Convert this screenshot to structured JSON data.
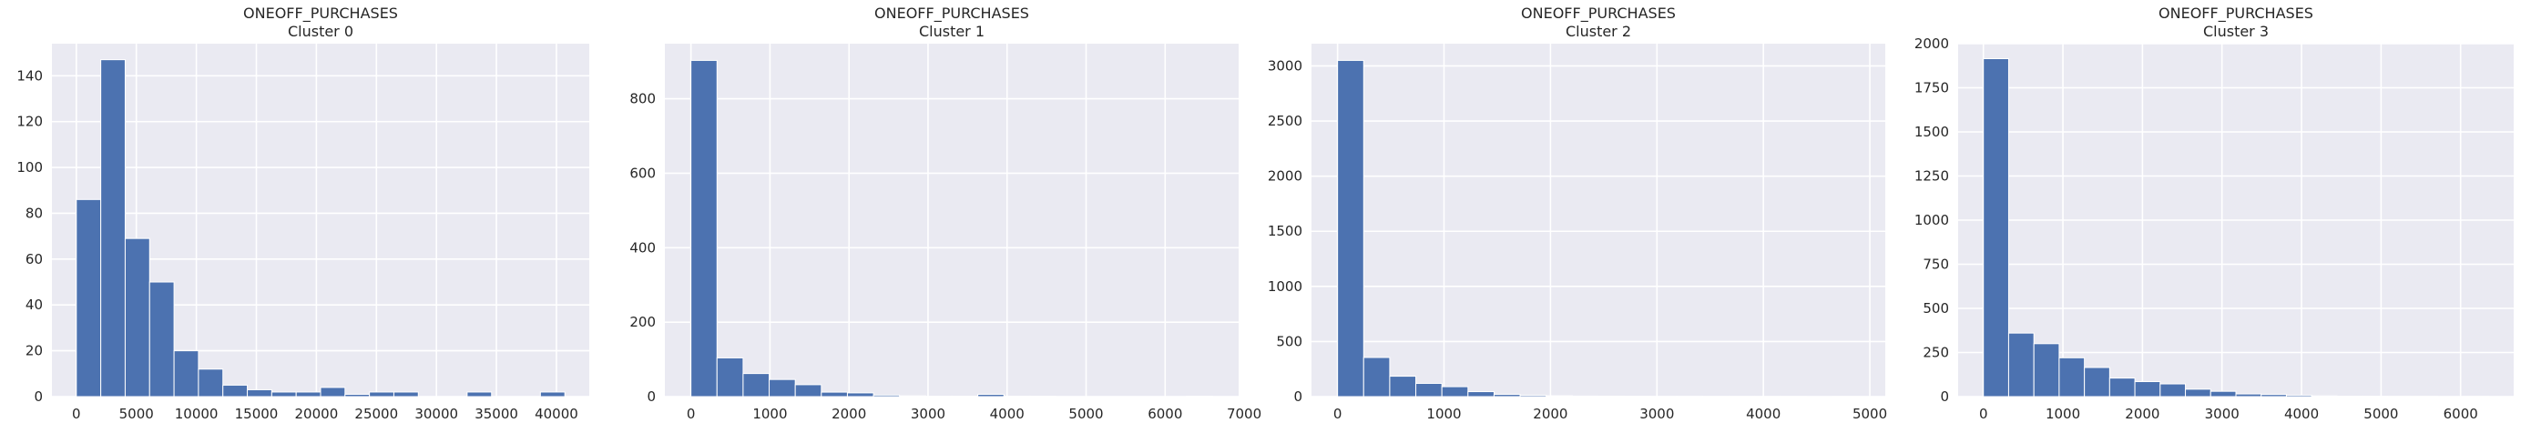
{
  "chart_data": [
    {
      "type": "bar",
      "title": "ONEOFF_PURCHASES",
      "subtitle": "Cluster 0",
      "bin_edges": [
        0,
        2035,
        4070,
        6105,
        8140,
        10175,
        12210,
        14245,
        16280,
        18315,
        20350,
        22385,
        24420,
        26455,
        28490,
        30525,
        32560,
        34595,
        36630,
        38665,
        40700
      ],
      "values": [
        86,
        147,
        69,
        50,
        20,
        12,
        5,
        3,
        2,
        2,
        4,
        1,
        2,
        2,
        0,
        0,
        2,
        0,
        0,
        2
      ],
      "xticks": [
        0,
        5000,
        10000,
        15000,
        20000,
        25000,
        30000,
        35000,
        40000
      ],
      "yticks": [
        0,
        20,
        40,
        60,
        80,
        100,
        120,
        140
      ],
      "xlim": [
        -2035,
        42735
      ],
      "ylim": [
        0,
        154
      ],
      "grid": true,
      "color": "#4c72b0",
      "background": "#eaeaf2"
    },
    {
      "type": "bar",
      "title": "ONEOFF_PURCHASES",
      "subtitle": "Cluster 1",
      "bin_edges": [
        0,
        330,
        660,
        990,
        1320,
        1650,
        1980,
        2310,
        2640,
        2970,
        3300,
        3630,
        3960,
        4290,
        4620,
        4950,
        5280,
        5610,
        5940,
        6270,
        6600
      ],
      "values": [
        903,
        104,
        62,
        46,
        32,
        12,
        10,
        4,
        2,
        1,
        1,
        6,
        1,
        1,
        0,
        0,
        0,
        0,
        0,
        1
      ],
      "xticks": [
        0,
        1000,
        2000,
        3000,
        4000,
        5000,
        6000,
        7000
      ],
      "yticks": [
        0,
        200,
        400,
        600,
        800
      ],
      "xlim": [
        -330,
        6930
      ],
      "ylim": [
        0,
        948
      ],
      "grid": true,
      "color": "#4c72b0",
      "background": "#eaeaf2"
    },
    {
      "type": "bar",
      "title": "ONEOFF_PURCHASES",
      "subtitle": "Cluster 2",
      "bin_edges": [
        0,
        245,
        490,
        735,
        980,
        1225,
        1470,
        1715,
        1960,
        2205,
        2450,
        2695,
        2940,
        3185,
        3430,
        3675,
        3920,
        4165,
        4410,
        4655,
        4900
      ],
      "values": [
        3050,
        355,
        185,
        120,
        90,
        45,
        20,
        12,
        8,
        5,
        4,
        3,
        2,
        2,
        1,
        1,
        1,
        1,
        0,
        1
      ],
      "xticks": [
        0,
        1000,
        2000,
        3000,
        4000,
        5000
      ],
      "yticks": [
        0,
        500,
        1000,
        1500,
        2000,
        2500,
        3000
      ],
      "xlim": [
        -245,
        5145
      ],
      "ylim": [
        0,
        3202
      ],
      "grid": true,
      "color": "#4c72b0",
      "background": "#eaeaf2"
    },
    {
      "type": "bar",
      "title": "ONEOFF_PURCHASES",
      "subtitle": "Cluster 3",
      "bin_edges": [
        0,
        317.5,
        635,
        952.5,
        1270,
        1587.5,
        1905,
        2222.5,
        2540,
        2857.5,
        3175,
        3492.5,
        3810,
        4127.5,
        4445,
        4762.5,
        5080,
        5397.5,
        5715,
        6032.5,
        6350
      ],
      "values": [
        1915,
        360,
        300,
        220,
        165,
        105,
        85,
        72,
        42,
        30,
        15,
        12,
        8,
        4,
        2,
        2,
        1,
        1,
        0,
        1
      ],
      "xticks": [
        0,
        1000,
        2000,
        3000,
        4000,
        5000,
        6000
      ],
      "yticks": [
        0,
        250,
        500,
        750,
        1000,
        1250,
        1500,
        1750,
        2000
      ],
      "xlim": [
        -317.5,
        6667.5
      ],
      "ylim": [
        0,
        2000
      ],
      "grid": true,
      "color": "#4c72b0",
      "background": "#eaeaf2"
    }
  ]
}
